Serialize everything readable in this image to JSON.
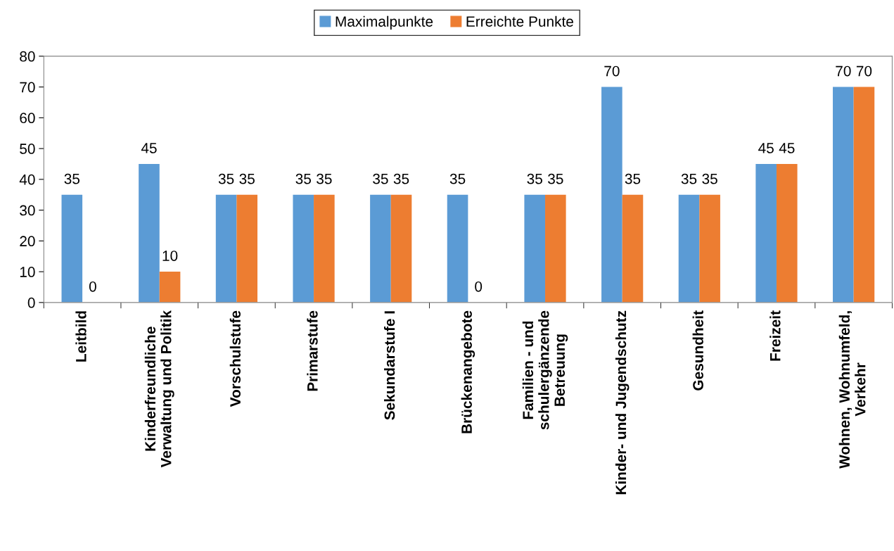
{
  "chart_data": {
    "type": "bar",
    "categories": [
      "Leitbild",
      "Kinderfreundliche\nVerwaltung und Politik",
      "Vorschulstufe",
      "Primarstufe",
      "Sekundarstufe I",
      "Brückenangebote",
      "Familien - und\nschulergänzende\nBetreuung",
      "Kinder- und Jugendschutz",
      "Gesundheit",
      "Freizeit",
      "Wohnen, Wohnumfeld,\nVerkehr"
    ],
    "series": [
      {
        "name": "Maximalpunkte",
        "color": "#5b9bd5",
        "values": [
          35,
          45,
          35,
          35,
          35,
          35,
          35,
          70,
          35,
          45,
          70
        ]
      },
      {
        "name": "Erreichte Punkte",
        "color": "#ed7d31",
        "values": [
          0,
          10,
          35,
          35,
          35,
          0,
          35,
          35,
          35,
          45,
          70
        ]
      }
    ],
    "ylim": [
      0,
      80
    ],
    "yticks": [
      0,
      10,
      20,
      30,
      40,
      50,
      60,
      70,
      80
    ],
    "data_labels": true,
    "legend": "top",
    "grid": false
  }
}
